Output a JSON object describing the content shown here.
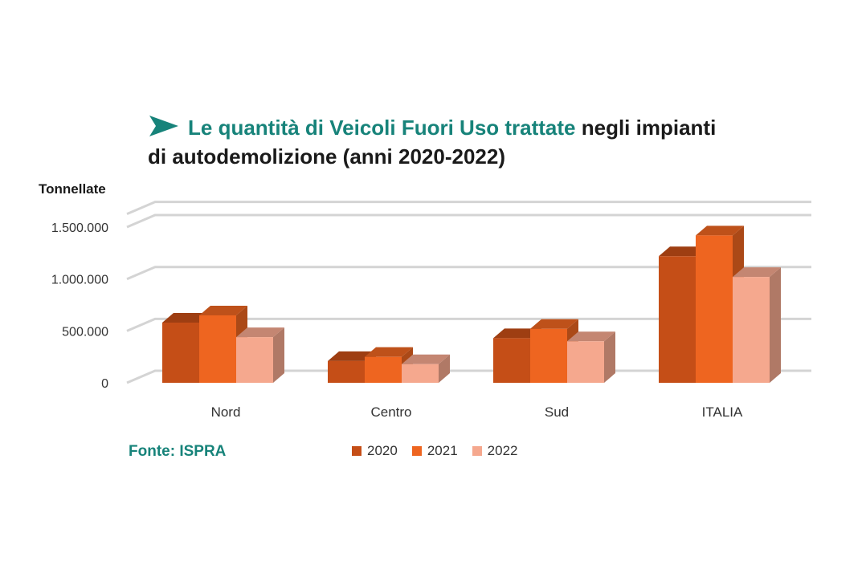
{
  "title": {
    "highlight": "Le quantità di Veicoli Fuori Uso trattate",
    "rest_line1": " negli impianti",
    "line2": "di autodemolizione (anni 2020-2022)"
  },
  "source": "Fonte: ISPRA",
  "colors": {
    "accent": "#17837a",
    "s2020": "#c54e17",
    "s2021": "#ee6520",
    "s2022": "#f5a88e"
  },
  "chart_data": {
    "type": "bar",
    "title": "Le quantità di Veicoli Fuori Uso trattate negli impianti di autodemolizione (anni 2020-2022)",
    "xlabel": "",
    "ylabel": "Tonnellate",
    "categories": [
      "Nord",
      "Centro",
      "Sud",
      "ITALIA"
    ],
    "series": [
      {
        "name": "2020",
        "values": [
          580000,
          210000,
          430000,
          1220000
        ]
      },
      {
        "name": "2021",
        "values": [
          650000,
          250000,
          520000,
          1420000
        ]
      },
      {
        "name": "2022",
        "values": [
          440000,
          180000,
          400000,
          1020000
        ]
      }
    ],
    "yticks": [
      "0",
      "500.000",
      "1.000.000",
      "1.500.000"
    ],
    "ytick_values": [
      0,
      500000,
      1000000,
      1500000
    ],
    "ylim": [
      0,
      1650000
    ],
    "grid": true,
    "style": "3d",
    "legend_position": "bottom"
  }
}
